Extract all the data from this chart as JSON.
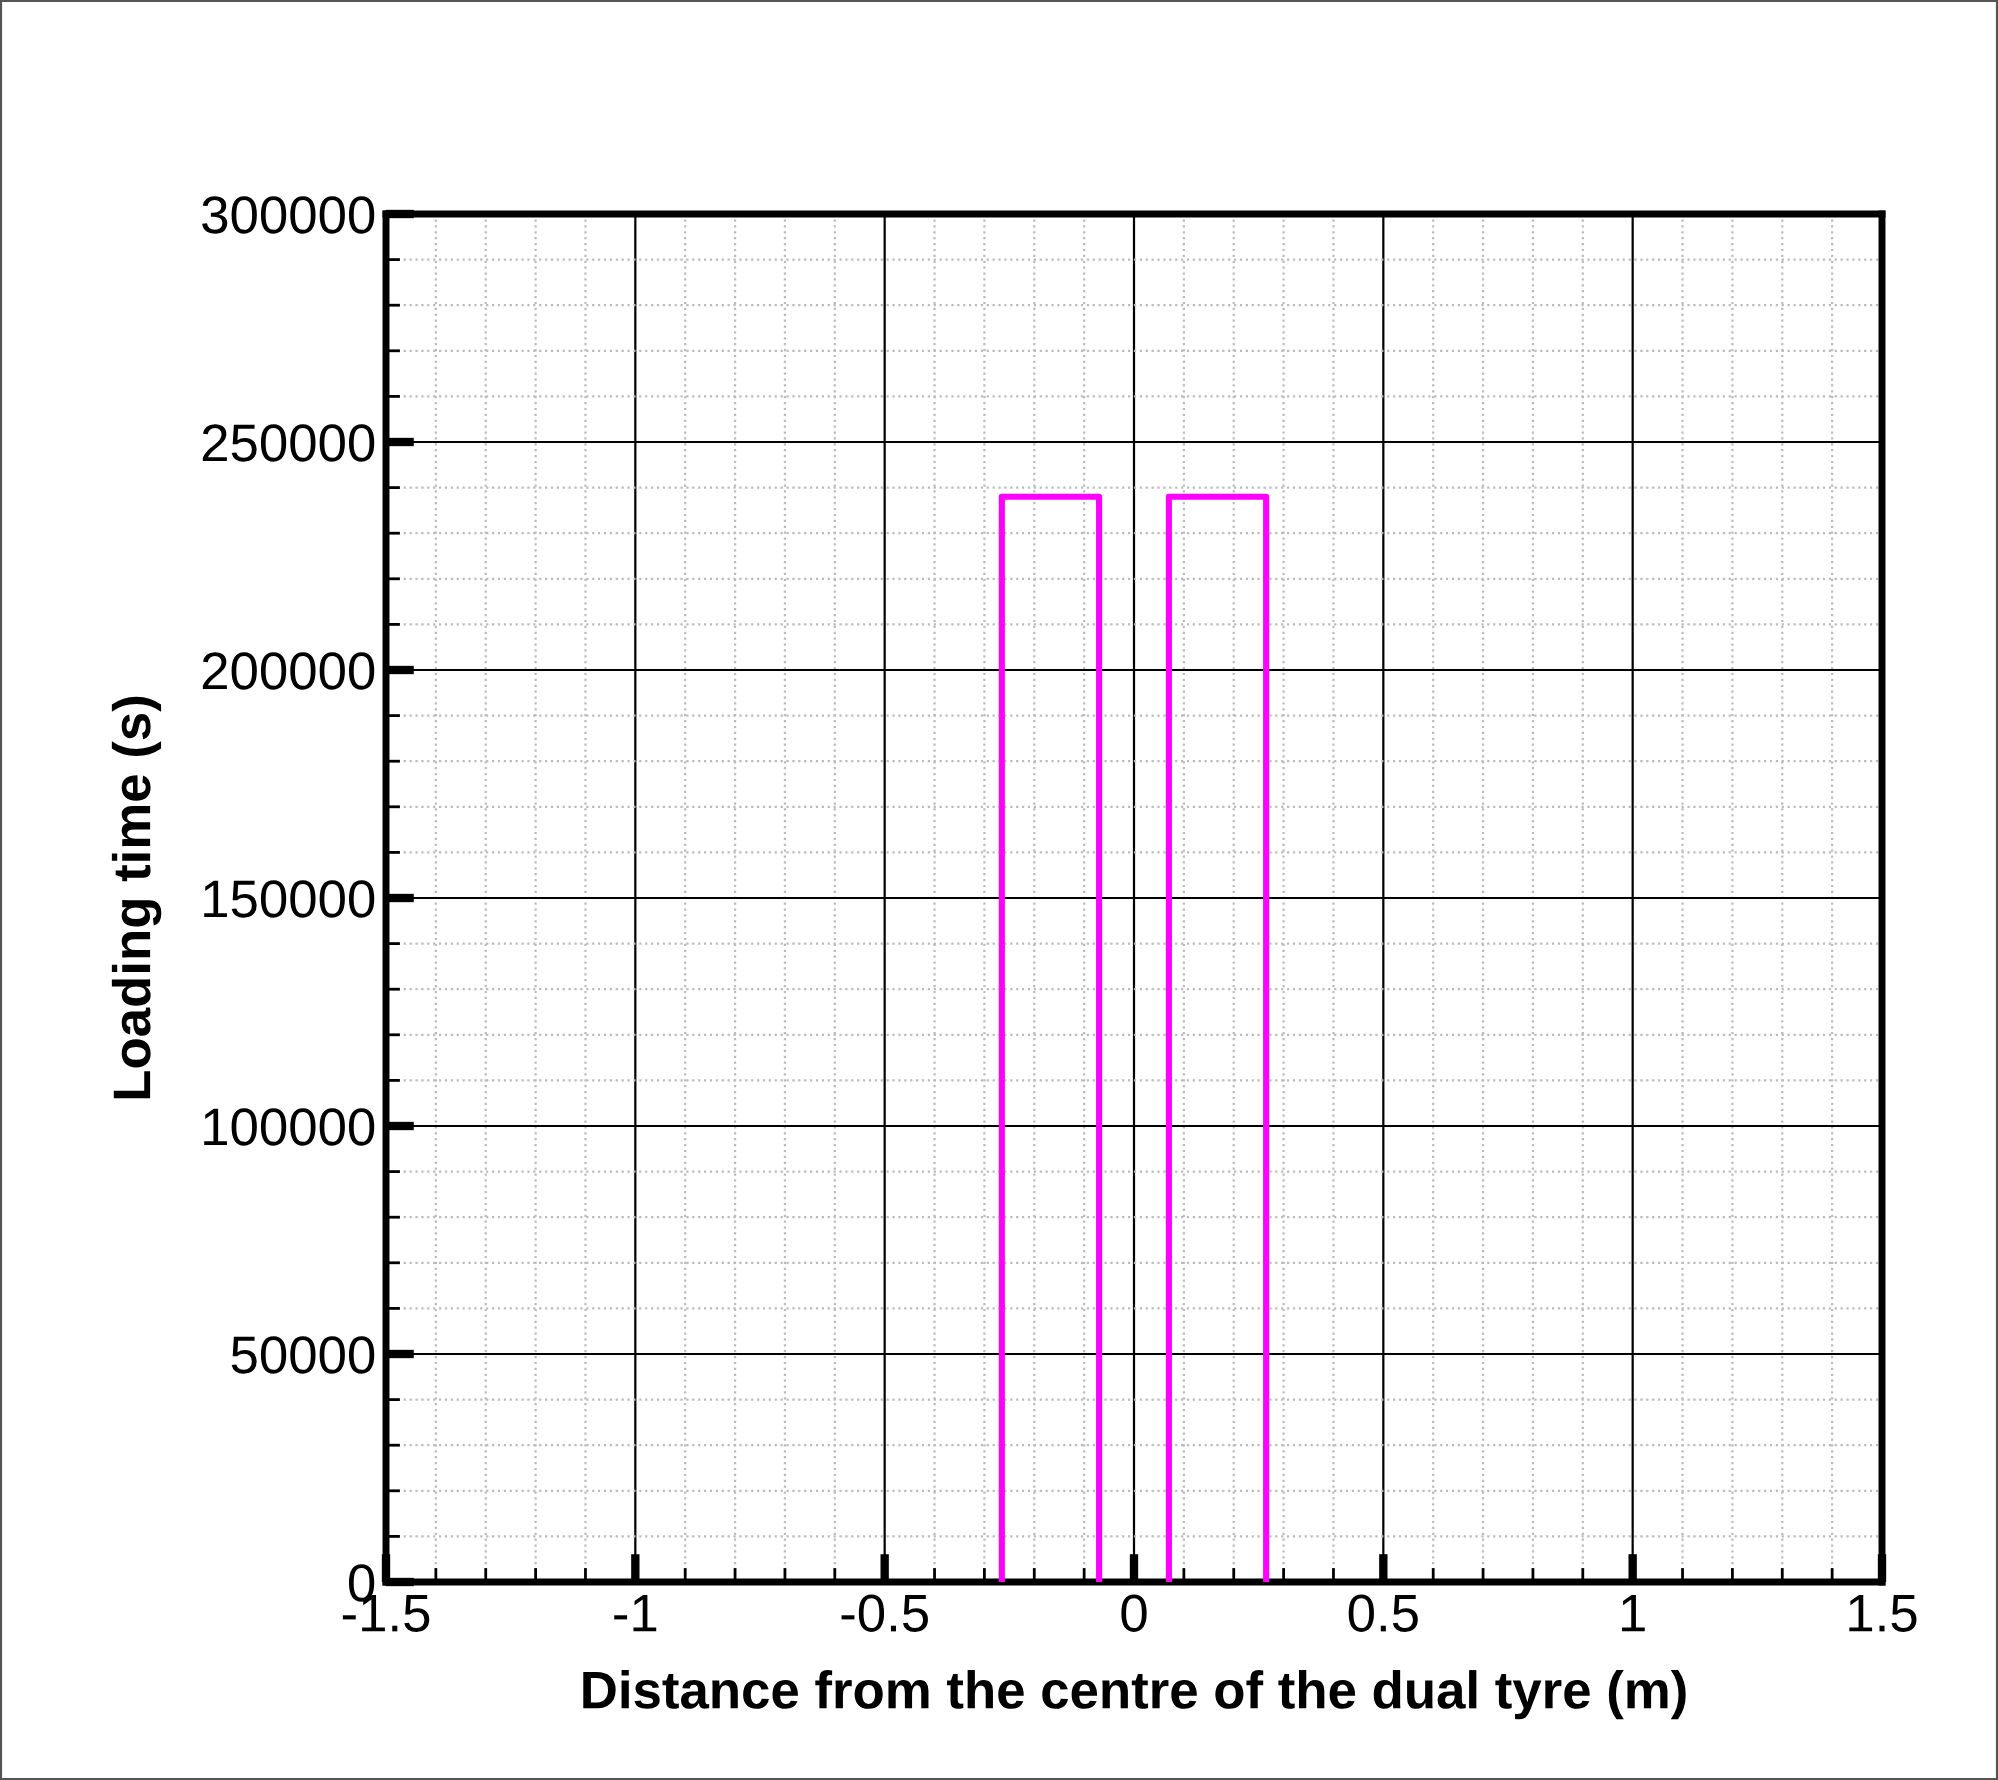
{
  "chart_data": {
    "type": "line",
    "xlabel": "Distance from the centre of the dual tyre (m)",
    "ylabel": "Loading time (s)",
    "series": [
      {
        "color": "#ff00ff",
        "x": [
          -0.265,
          -0.265,
          -0.07,
          -0.07
        ],
        "values": [
          0,
          238000,
          238000,
          0
        ]
      },
      {
        "color": "#ff00ff",
        "x": [
          0.07,
          0.07,
          0.265,
          0.265
        ],
        "values": [
          0,
          238000,
          238000,
          0
        ]
      }
    ],
    "xlim": [
      -1.5,
      1.5
    ],
    "xticks": [
      -1.5,
      -1,
      -0.5,
      0,
      0.5,
      1,
      1.5
    ],
    "ylim": [
      0,
      300000
    ],
    "yticks": [
      0,
      50000,
      100000,
      150000,
      200000,
      250000,
      300000
    ],
    "grid": true,
    "marker": "none",
    "line_style": "solid"
  }
}
